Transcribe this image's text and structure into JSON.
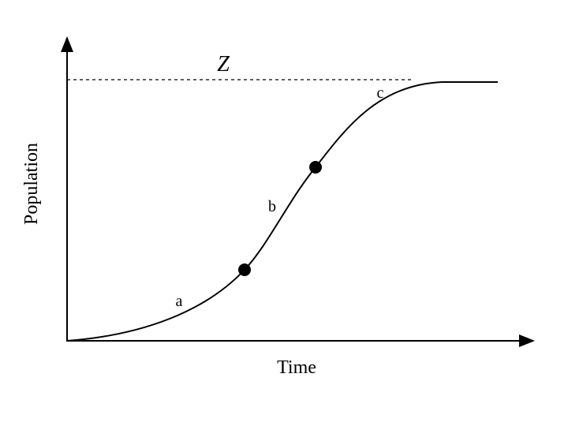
{
  "limit": {
    "label": "Z"
  },
  "axes": {
    "y_label": "Population",
    "x_label": "Time"
  },
  "phases": [
    {
      "label": "a"
    },
    {
      "label": "b"
    },
    {
      "label": "c"
    }
  ]
}
